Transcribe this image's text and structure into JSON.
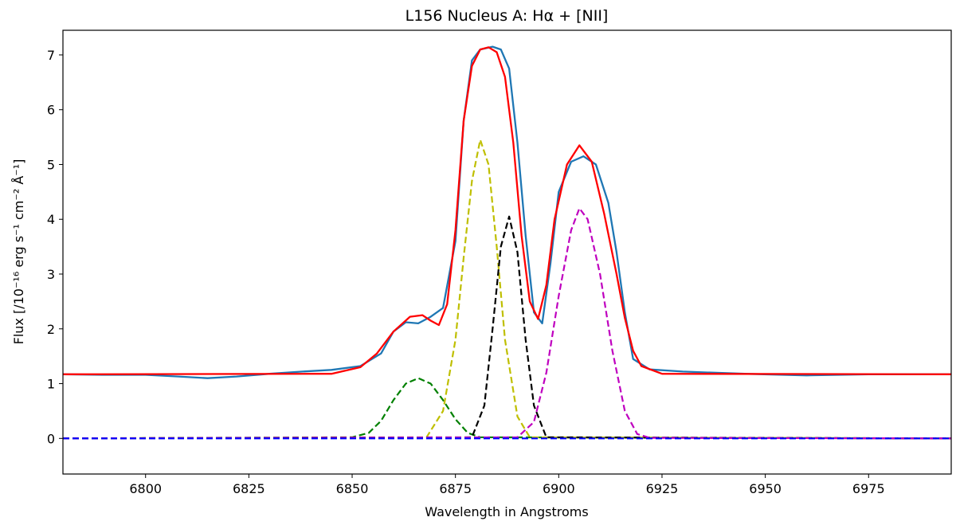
{
  "chart_data": {
    "type": "line",
    "title": "L156 Nucleus A: Hα + [NII]",
    "xlabel": "Wavelength in Angstroms",
    "ylabel": "Flux  [/10⁻¹⁶ erg s⁻¹ cm⁻² Å⁻¹]",
    "xlim": [
      6780,
      6995
    ],
    "ylim": [
      -0.65,
      7.45
    ],
    "xticks": [
      6800,
      6825,
      6850,
      6875,
      6900,
      6925,
      6950,
      6975
    ],
    "yticks": [
      0,
      1,
      2,
      3,
      4,
      5,
      6,
      7
    ],
    "grid": false,
    "legend": "none",
    "series": [
      {
        "color": "#1f77b4",
        "style": "solid",
        "x": [
          6780,
          6790,
          6800,
          6808,
          6815,
          6822,
          6830,
          6838,
          6845,
          6852,
          6857,
          6860,
          6863,
          6866,
          6869,
          6872,
          6875,
          6877,
          6879,
          6881,
          6884,
          6886,
          6888,
          6890,
          6892,
          6894,
          6896,
          6898,
          6900,
          6903,
          6906,
          6909,
          6912,
          6914,
          6916,
          6918,
          6922,
          6930,
          6945,
          6960,
          6975,
          6995
        ],
        "y": [
          1.17,
          1.16,
          1.16,
          1.13,
          1.1,
          1.13,
          1.18,
          1.22,
          1.25,
          1.32,
          1.55,
          1.95,
          2.12,
          2.1,
          2.22,
          2.38,
          3.6,
          5.8,
          6.9,
          7.1,
          7.15,
          7.1,
          6.75,
          5.4,
          3.7,
          2.3,
          2.1,
          3.2,
          4.5,
          5.05,
          5.15,
          5.0,
          4.3,
          3.4,
          2.3,
          1.45,
          1.26,
          1.22,
          1.18,
          1.15,
          1.17,
          1.17
        ]
      },
      {
        "color": "#ff0000",
        "style": "solid",
        "x": [
          6780,
          6845,
          6852,
          6856,
          6860,
          6864,
          6867,
          6869,
          6871,
          6873,
          6875,
          6877,
          6879,
          6881,
          6883,
          6885,
          6887,
          6889,
          6891,
          6893,
          6895,
          6897,
          6899,
          6902,
          6905,
          6908,
          6911,
          6914,
          6916,
          6918,
          6920,
          6925,
          6995
        ],
        "y": [
          1.17,
          1.18,
          1.3,
          1.55,
          1.95,
          2.22,
          2.25,
          2.15,
          2.07,
          2.45,
          3.8,
          5.8,
          6.8,
          7.1,
          7.14,
          7.05,
          6.6,
          5.4,
          3.7,
          2.5,
          2.18,
          2.8,
          4.0,
          5.0,
          5.35,
          5.05,
          4.1,
          3.0,
          2.2,
          1.6,
          1.32,
          1.18,
          1.17
        ]
      },
      {
        "color": "#008000",
        "style": "dashed",
        "x": [
          6780,
          6850,
          6854,
          6857,
          6860,
          6863,
          6866,
          6869,
          6872,
          6875,
          6878,
          6881,
          6995
        ],
        "y": [
          0,
          0.02,
          0.1,
          0.32,
          0.7,
          1.0,
          1.1,
          1.0,
          0.7,
          0.35,
          0.1,
          0.02,
          0
        ]
      },
      {
        "color": "#bfbf00",
        "style": "dashed",
        "x": [
          6780,
          6868,
          6872,
          6875,
          6877,
          6879,
          6881,
          6883,
          6885,
          6887,
          6890,
          6893,
          6995
        ],
        "y": [
          0,
          0.02,
          0.5,
          1.8,
          3.3,
          4.7,
          5.45,
          5.0,
          3.5,
          1.8,
          0.4,
          0.02,
          0
        ]
      },
      {
        "color": "#000000",
        "style": "dashed",
        "x": [
          6780,
          6879,
          6882,
          6884,
          6886,
          6888,
          6890,
          6892,
          6894,
          6897,
          6995
        ],
        "y": [
          0,
          0.02,
          0.6,
          2.0,
          3.5,
          4.05,
          3.4,
          1.8,
          0.6,
          0.02,
          0
        ]
      },
      {
        "color": "#bf00bf",
        "style": "dashed",
        "x": [
          6780,
          6890,
          6894,
          6897,
          6900,
          6903,
          6905,
          6907,
          6910,
          6913,
          6916,
          6919,
          6922,
          6995
        ],
        "y": [
          0,
          0.02,
          0.3,
          1.2,
          2.6,
          3.8,
          4.2,
          4.0,
          3.0,
          1.6,
          0.5,
          0.08,
          0.01,
          0
        ]
      },
      {
        "color": "#0000ff",
        "style": "dashed",
        "x": [
          6780,
          6995
        ],
        "y": [
          0,
          0
        ]
      }
    ]
  }
}
